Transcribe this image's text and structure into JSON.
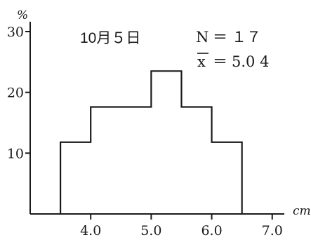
{
  "chart_data": {
    "type": "bar",
    "subtype": "histogram",
    "title": "",
    "xlabel": "",
    "ylabel": "",
    "x_unit": "cm",
    "y_unit": "%",
    "xlim": [
      3.0,
      7.2
    ],
    "ylim": [
      0,
      30
    ],
    "x_ticks": [
      4.0,
      5.0,
      6.0,
      7.0
    ],
    "x_tick_labels": [
      "4.0",
      "5.0",
      "6.0",
      "7.0"
    ],
    "y_ticks": [
      10,
      20,
      30
    ],
    "y_tick_labels": [
      "10",
      "20",
      "30"
    ],
    "bins": [
      {
        "from": 3.5,
        "to": 4.0,
        "value": 11.8
      },
      {
        "from": 4.0,
        "to": 4.5,
        "value": 17.6
      },
      {
        "from": 4.5,
        "to": 5.0,
        "value": 17.6
      },
      {
        "from": 5.0,
        "to": 5.5,
        "value": 23.5
      },
      {
        "from": 5.5,
        "to": 6.0,
        "value": 17.6
      },
      {
        "from": 6.0,
        "to": 6.5,
        "value": 11.8
      }
    ],
    "annotations": {
      "date": "10月５日",
      "n_label": "N",
      "n_eq": "＝",
      "n_value": "１７",
      "mean_symbol": "x",
      "mean_eq": "＝",
      "mean_value": "5.0 4"
    },
    "grid": false,
    "legend": "none"
  }
}
